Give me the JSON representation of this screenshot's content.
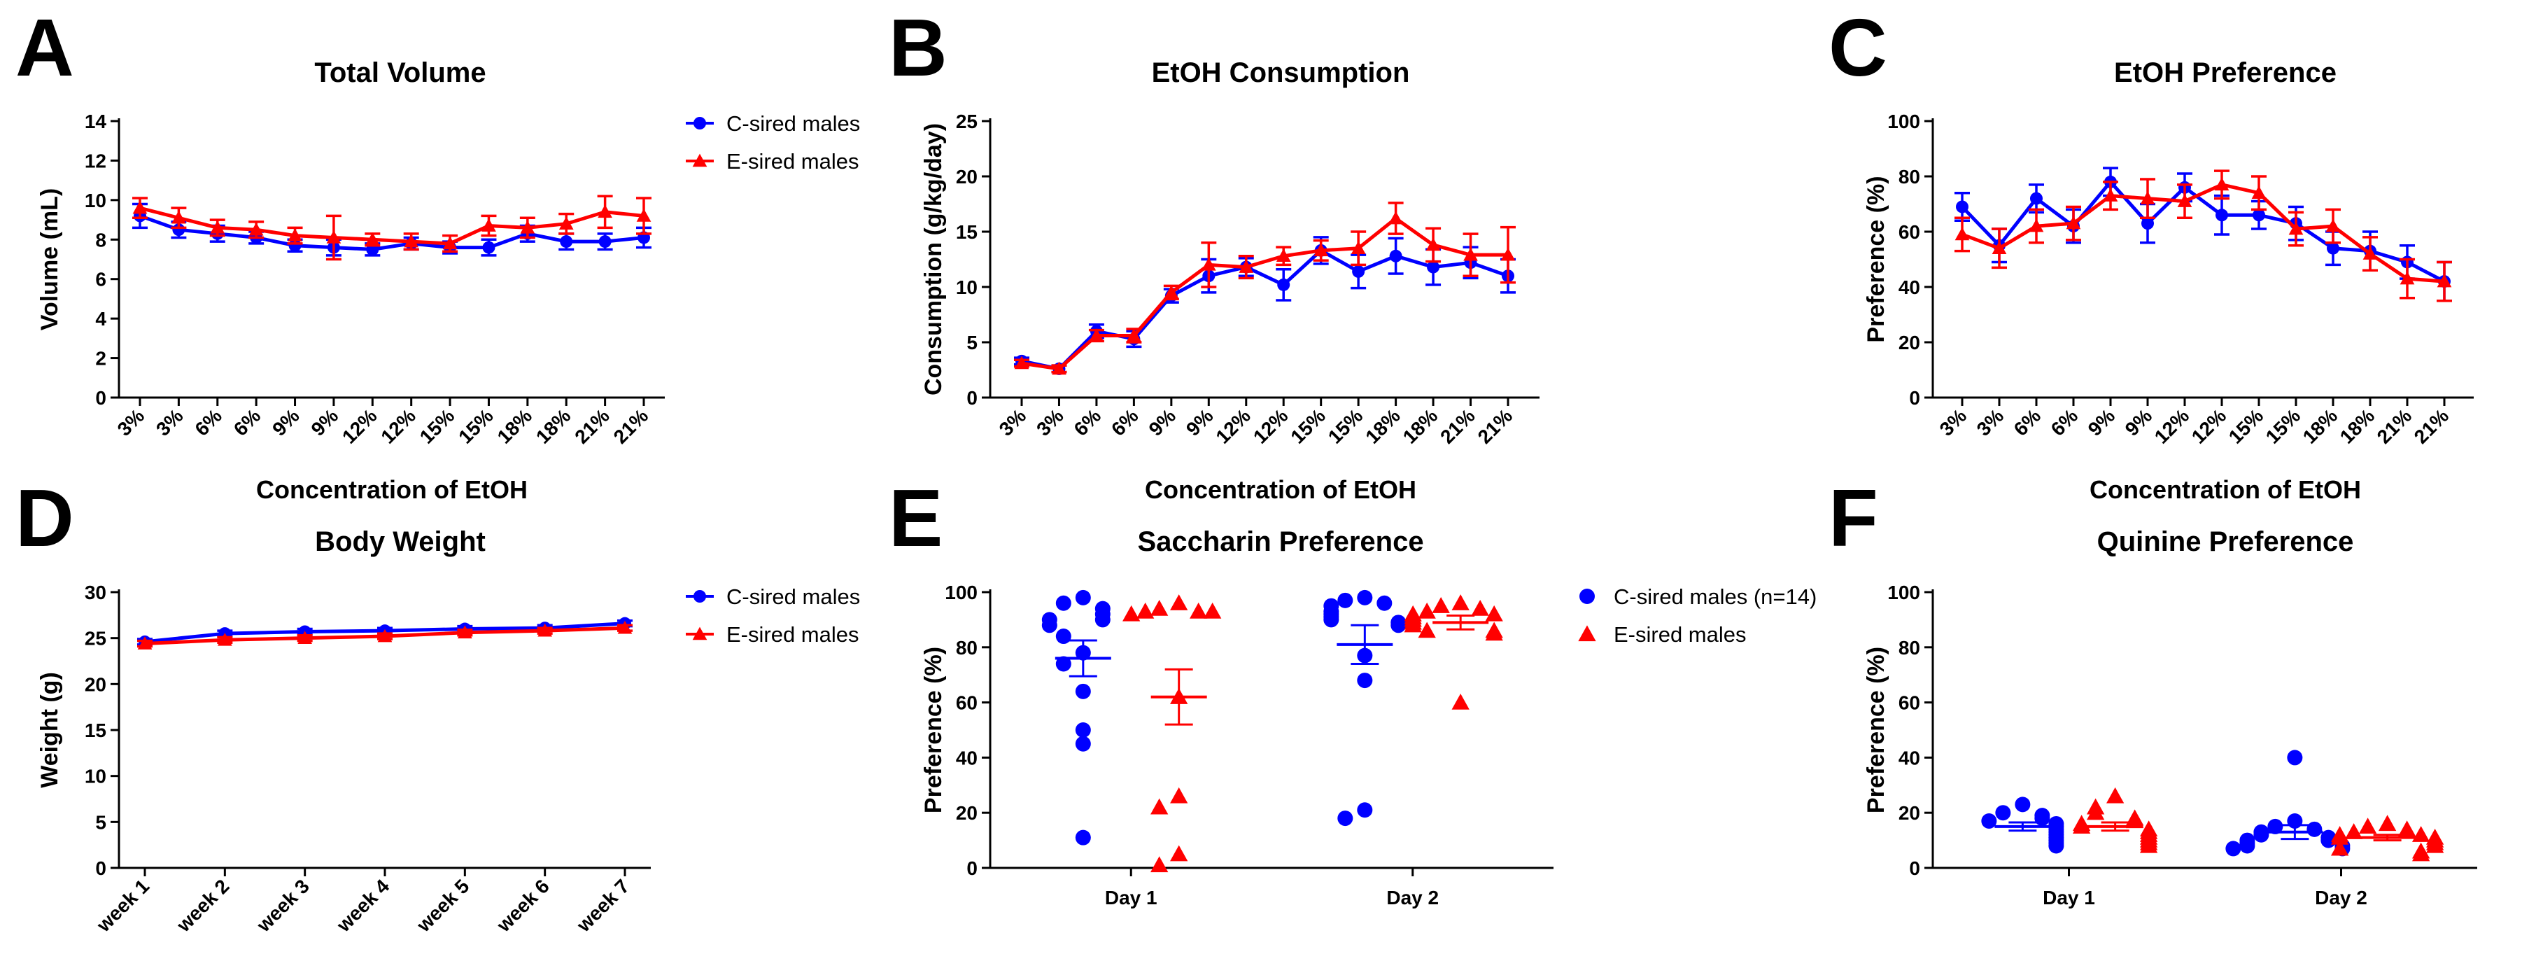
{
  "colors": {
    "c_sired": "#0000ff",
    "e_sired": "#ff0000"
  },
  "chart_data": [
    {
      "id": "A",
      "letter": "A",
      "type": "line",
      "title": "Total Volume",
      "xlabel": "Concentration of EtOH",
      "ylabel": "Volume (mL)",
      "ylim": [
        0,
        14
      ],
      "yticks": [
        0,
        2,
        4,
        6,
        8,
        10,
        12,
        14
      ],
      "categories": [
        "3%",
        "3%",
        "6%",
        "6%",
        "9%",
        "9%",
        "12%",
        "12%",
        "15%",
        "15%",
        "18%",
        "18%",
        "21%",
        "21%"
      ],
      "legend": [
        "C-sired males",
        "E-sired males"
      ],
      "series": [
        {
          "name": "C-sired males",
          "color": "#0000ff",
          "marker": "circle",
          "values": [
            9.2,
            8.5,
            8.3,
            8.1,
            7.7,
            7.6,
            7.5,
            7.8,
            7.6,
            7.6,
            8.3,
            7.9,
            7.9,
            8.1
          ],
          "errors": [
            0.6,
            0.4,
            0.4,
            0.3,
            0.3,
            0.4,
            0.3,
            0.3,
            0.3,
            0.4,
            0.4,
            0.4,
            0.4,
            0.5
          ]
        },
        {
          "name": "E-sired males",
          "color": "#ff0000",
          "marker": "triangle",
          "values": [
            9.6,
            9.1,
            8.6,
            8.5,
            8.2,
            8.1,
            8.0,
            7.9,
            7.8,
            8.7,
            8.6,
            8.8,
            9.4,
            9.2
          ],
          "errors": [
            0.5,
            0.5,
            0.4,
            0.4,
            0.4,
            1.1,
            0.3,
            0.4,
            0.4,
            0.5,
            0.5,
            0.5,
            0.8,
            0.9
          ]
        }
      ]
    },
    {
      "id": "B",
      "letter": "B",
      "type": "line",
      "title": "EtOH Consumption",
      "xlabel": "Concentration of EtOH",
      "ylabel": "Consumption (g/kg/day)",
      "ylim": [
        0,
        25
      ],
      "yticks": [
        0,
        5,
        10,
        15,
        20,
        25
      ],
      "categories": [
        "3%",
        "3%",
        "6%",
        "6%",
        "9%",
        "9%",
        "12%",
        "12%",
        "15%",
        "15%",
        "18%",
        "18%",
        "21%",
        "21%"
      ],
      "series": [
        {
          "name": "C-sired males",
          "color": "#0000ff",
          "marker": "circle",
          "values": [
            3.3,
            2.6,
            6.0,
            5.3,
            9.2,
            11.0,
            11.8,
            10.2,
            13.3,
            11.4,
            12.8,
            11.8,
            12.2,
            11.0
          ],
          "errors": [
            0.3,
            0.3,
            0.6,
            0.7,
            0.6,
            1.5,
            0.8,
            1.4,
            1.2,
            1.5,
            1.6,
            1.6,
            1.4,
            1.5
          ]
        },
        {
          "name": "E-sired males",
          "color": "#ff0000",
          "marker": "triangle",
          "values": [
            3.1,
            2.6,
            5.6,
            5.6,
            9.5,
            12.0,
            11.8,
            12.8,
            13.3,
            13.5,
            16.2,
            13.8,
            12.9,
            12.9
          ],
          "errors": [
            0.3,
            0.3,
            0.5,
            0.6,
            0.6,
            2.0,
            1.0,
            0.8,
            0.9,
            1.5,
            1.4,
            1.5,
            1.9,
            2.5
          ]
        }
      ]
    },
    {
      "id": "C",
      "letter": "C",
      "type": "line",
      "title": "EtOH Preference",
      "xlabel": "Concentration of EtOH",
      "ylabel": "Preference (%)",
      "ylim": [
        0,
        100
      ],
      "yticks": [
        0,
        20,
        40,
        60,
        80,
        100
      ],
      "categories": [
        "3%",
        "3%",
        "6%",
        "6%",
        "9%",
        "9%",
        "12%",
        "12%",
        "15%",
        "15%",
        "18%",
        "18%",
        "21%",
        "21%"
      ],
      "series": [
        {
          "name": "C-sired males",
          "color": "#0000ff",
          "marker": "circle",
          "values": [
            69,
            55,
            72,
            62,
            78,
            63,
            76,
            66,
            66,
            63,
            54,
            53,
            49,
            42
          ],
          "errors": [
            5,
            6,
            5,
            6,
            5,
            7,
            5,
            7,
            5,
            6,
            6,
            7,
            6,
            7
          ]
        },
        {
          "name": "E-sired males",
          "color": "#ff0000",
          "marker": "triangle",
          "values": [
            59,
            54,
            62,
            63,
            73,
            72,
            71,
            77,
            74,
            61,
            62,
            52,
            43,
            42
          ],
          "errors": [
            6,
            7,
            6,
            6,
            5,
            7,
            6,
            5,
            6,
            6,
            6,
            6,
            7,
            7
          ]
        }
      ]
    },
    {
      "id": "D",
      "letter": "D",
      "type": "line",
      "title": "Body Weight",
      "xlabel": "",
      "ylabel": "Weight (g)",
      "ylim": [
        0,
        30
      ],
      "yticks": [
        0,
        5,
        10,
        15,
        20,
        25,
        30
      ],
      "categories": [
        "week 1",
        "week 2",
        "week 3",
        "week 4",
        "week 5",
        "week 6",
        "week 7"
      ],
      "legend": [
        "C-sired males",
        "E-sired males"
      ],
      "series": [
        {
          "name": "C-sired males",
          "color": "#0000ff",
          "marker": "circle",
          "values": [
            24.6,
            25.5,
            25.7,
            25.8,
            26.0,
            26.1,
            26.6
          ],
          "errors": [
            0.3,
            0.3,
            0.3,
            0.3,
            0.3,
            0.3,
            0.3
          ]
        },
        {
          "name": "E-sired males",
          "color": "#ff0000",
          "marker": "triangle",
          "values": [
            24.4,
            24.8,
            25.0,
            25.2,
            25.6,
            25.8,
            26.1
          ],
          "errors": [
            0.3,
            0.3,
            0.3,
            0.3,
            0.3,
            0.3,
            0.3
          ]
        }
      ]
    },
    {
      "id": "E",
      "letter": "E",
      "type": "scatter",
      "title": "Saccharin Preference",
      "xlabel": "",
      "ylabel": "Preference (%)",
      "ylim": [
        0,
        100
      ],
      "yticks": [
        0,
        20,
        40,
        60,
        80,
        100
      ],
      "categories": [
        "Day 1",
        "Day 2"
      ],
      "legend": [
        "C-sired males (n=14)",
        "E-sired males"
      ],
      "groups": [
        {
          "category": "Day 1",
          "name": "C-sired males",
          "color": "#0000ff",
          "marker": "circle",
          "points": [
            98,
            96,
            94,
            92,
            90,
            90,
            88,
            84,
            78,
            74,
            64,
            50,
            45,
            11
          ],
          "mean": 76,
          "sem": 6.5
        },
        {
          "category": "Day 1",
          "name": "E-sired males",
          "color": "#ff0000",
          "marker": "triangle",
          "points": [
            96,
            94,
            93,
            93,
            93,
            92,
            62,
            26,
            22,
            5,
            1
          ],
          "mean": 62,
          "sem": 10
        },
        {
          "category": "Day 2",
          "name": "C-sired males",
          "color": "#0000ff",
          "marker": "circle",
          "points": [
            98,
            97,
            96,
            95,
            93,
            92,
            91,
            90,
            89,
            88,
            77,
            68,
            21,
            18
          ],
          "mean": 81,
          "sem": 7
        },
        {
          "category": "Day 2",
          "name": "E-sired males",
          "color": "#ff0000",
          "marker": "triangle",
          "points": [
            96,
            95,
            94,
            93,
            92,
            92,
            91,
            90,
            89,
            88,
            86,
            86,
            85,
            60
          ],
          "mean": 89,
          "sem": 2.5
        }
      ]
    },
    {
      "id": "F",
      "letter": "F",
      "type": "scatter",
      "title": "Quinine Preference",
      "xlabel": "",
      "ylabel": "Preference (%)",
      "ylim": [
        0,
        100
      ],
      "yticks": [
        0,
        20,
        40,
        60,
        80,
        100
      ],
      "categories": [
        "Day 1",
        "Day 2"
      ],
      "groups": [
        {
          "category": "Day 1",
          "name": "C-sired males",
          "color": "#0000ff",
          "marker": "circle",
          "points": [
            23,
            20,
            19,
            18,
            17,
            16,
            15,
            14,
            13,
            12,
            11,
            10,
            9,
            8
          ],
          "mean": 15,
          "sem": 1.5
        },
        {
          "category": "Day 1",
          "name": "E-sired males",
          "color": "#ff0000",
          "marker": "triangle",
          "points": [
            26,
            22,
            20,
            18,
            17,
            16,
            15,
            14,
            13,
            12,
            11,
            10,
            9,
            8
          ],
          "mean": 15,
          "sem": 1.5
        },
        {
          "category": "Day 2",
          "name": "C-sired males",
          "color": "#0000ff",
          "marker": "circle",
          "points": [
            40,
            17,
            15,
            14,
            13,
            12,
            11,
            10,
            10,
            9,
            8,
            8,
            7,
            7
          ],
          "mean": 13,
          "sem": 2.5
        },
        {
          "category": "Day 2",
          "name": "E-sired males",
          "color": "#ff0000",
          "marker": "triangle",
          "points": [
            16,
            15,
            14,
            13,
            12,
            12,
            11,
            11,
            10,
            9,
            8,
            7,
            6,
            5
          ],
          "mean": 11,
          "sem": 1
        }
      ]
    }
  ]
}
